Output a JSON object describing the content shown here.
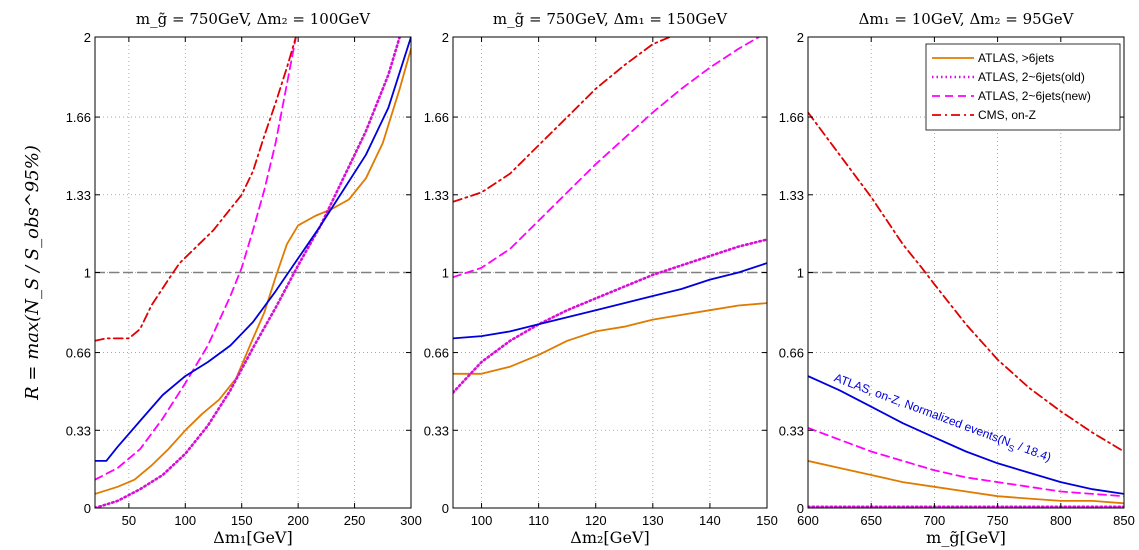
{
  "chart_data": [
    {
      "type": "line",
      "title": "m_g̃ = 750GeV, Δm₂ = 100GeV",
      "xlabel": "Δm₁[GeV]",
      "ylabel": "R = max(N_S / S_obs^95%)",
      "xlim": [
        20,
        300
      ],
      "ylim": [
        0,
        2
      ],
      "xticks": [
        50,
        100,
        150,
        200,
        250,
        300
      ],
      "yticks": [
        0,
        0.33,
        0.66,
        1,
        1.33,
        1.66,
        2
      ],
      "ytick_labels": [
        "0",
        "0.33",
        "0.66",
        "1",
        "1.33",
        "1.66",
        "2"
      ],
      "grid": true,
      "reference_line": 1,
      "series": [
        {
          "name": "ATLAS, >6jets",
          "color": "#E07B00",
          "style": "solid",
          "x": [
            20,
            40,
            55,
            70,
            85,
            100,
            115,
            130,
            145,
            160,
            170,
            180,
            190,
            200,
            215,
            230,
            245,
            260,
            275,
            290,
            300
          ],
          "y": [
            0.06,
            0.09,
            0.12,
            0.18,
            0.25,
            0.33,
            0.4,
            0.46,
            0.55,
            0.72,
            0.83,
            0.98,
            1.12,
            1.2,
            1.24,
            1.27,
            1.31,
            1.4,
            1.55,
            1.78,
            1.95
          ]
        },
        {
          "name": "ATLAS, 2~6jets(old)",
          "color": "#D60FD6",
          "style": "dotted",
          "x": [
            20,
            40,
            60,
            80,
            100,
            120,
            140,
            160,
            180,
            200,
            220,
            240,
            260,
            280,
            290
          ],
          "y": [
            0.0,
            0.03,
            0.08,
            0.14,
            0.23,
            0.35,
            0.5,
            0.68,
            0.85,
            1.03,
            1.2,
            1.4,
            1.6,
            1.84,
            2.0
          ]
        },
        {
          "name": "ATLAS, 2~6jets(new)",
          "color": "#FF00FF",
          "style": "dashed",
          "x": [
            20,
            40,
            60,
            80,
            100,
            120,
            140,
            150,
            160,
            170,
            180,
            190,
            198
          ],
          "y": [
            0.12,
            0.17,
            0.25,
            0.38,
            0.53,
            0.69,
            0.9,
            1.02,
            1.18,
            1.35,
            1.55,
            1.8,
            2.0
          ]
        },
        {
          "name": "CMS, on-Z",
          "color": "#E00000",
          "style": "dashdot",
          "x": [
            20,
            30,
            50,
            60,
            70,
            85,
            95,
            110,
            125,
            140,
            150,
            160,
            170,
            180,
            190,
            198
          ],
          "y": [
            0.71,
            0.72,
            0.72,
            0.76,
            0.86,
            0.97,
            1.04,
            1.11,
            1.18,
            1.27,
            1.33,
            1.43,
            1.58,
            1.72,
            1.87,
            2.0
          ]
        },
        {
          "name": "ATLAS, on-Z, Normalized events(N_S / 18.4)",
          "color": "#0000DD",
          "style": "solid",
          "x": [
            20,
            30,
            40,
            60,
            80,
            100,
            120,
            140,
            160,
            180,
            200,
            220,
            240,
            260,
            280,
            290,
            300
          ],
          "y": [
            0.2,
            0.2,
            0.26,
            0.37,
            0.48,
            0.56,
            0.62,
            0.69,
            0.79,
            0.92,
            1.06,
            1.2,
            1.35,
            1.5,
            1.7,
            1.85,
            2.0
          ]
        }
      ]
    },
    {
      "type": "line",
      "title": "m_g̃ = 750GeV, Δm₁ = 150GeV",
      "xlabel": "Δm₂[GeV]",
      "xlim": [
        95,
        150
      ],
      "ylim": [
        0,
        2
      ],
      "xticks": [
        100,
        110,
        120,
        130,
        140,
        150
      ],
      "yticks": [
        0,
        0.33,
        0.66,
        1,
        1.33,
        1.66,
        2
      ],
      "ytick_labels": [
        "0",
        "0.33",
        "0.66",
        "1",
        "1.33",
        "1.66",
        "2"
      ],
      "grid": true,
      "reference_line": 1,
      "series": [
        {
          "name": "ATLAS, >6jets",
          "color": "#E07B00",
          "style": "solid",
          "x": [
            95,
            100,
            105,
            110,
            115,
            120,
            125,
            130,
            135,
            140,
            145,
            150
          ],
          "y": [
            0.57,
            0.57,
            0.6,
            0.65,
            0.71,
            0.75,
            0.77,
            0.8,
            0.82,
            0.84,
            0.86,
            0.87
          ]
        },
        {
          "name": "ATLAS, 2~6jets(old)",
          "color": "#D60FD6",
          "style": "dotted",
          "x": [
            95,
            100,
            105,
            110,
            115,
            120,
            125,
            130,
            135,
            140,
            145,
            150
          ],
          "y": [
            0.49,
            0.62,
            0.71,
            0.78,
            0.84,
            0.89,
            0.94,
            0.99,
            1.03,
            1.07,
            1.11,
            1.14
          ]
        },
        {
          "name": "ATLAS, 2~6jets(new)",
          "color": "#FF00FF",
          "style": "dashed",
          "x": [
            95,
            100,
            105,
            110,
            115,
            120,
            125,
            130,
            135,
            140,
            145,
            150
          ],
          "y": [
            0.98,
            1.02,
            1.1,
            1.22,
            1.34,
            1.46,
            1.57,
            1.68,
            1.78,
            1.87,
            1.95,
            2.02
          ]
        },
        {
          "name": "CMS, on-Z",
          "color": "#E00000",
          "style": "dashdot",
          "x": [
            95,
            100,
            105,
            110,
            115,
            120,
            125,
            130,
            133
          ],
          "y": [
            1.3,
            1.34,
            1.42,
            1.54,
            1.66,
            1.78,
            1.88,
            1.97,
            2.0
          ]
        },
        {
          "name": "ATLAS, on-Z, Normalized events(N_S / 18.4)",
          "color": "#0000DD",
          "style": "solid",
          "x": [
            95,
            100,
            105,
            110,
            115,
            120,
            125,
            130,
            135,
            140,
            145,
            150
          ],
          "y": [
            0.72,
            0.73,
            0.75,
            0.78,
            0.81,
            0.84,
            0.87,
            0.9,
            0.93,
            0.97,
            1.0,
            1.04
          ]
        }
      ]
    },
    {
      "type": "line",
      "title": "Δm₁ = 10GeV, Δm₂ = 95GeV",
      "xlabel": "m_g̃[GeV]",
      "xlim": [
        600,
        850
      ],
      "ylim": [
        0,
        2
      ],
      "xticks": [
        600,
        650,
        700,
        750,
        800,
        850
      ],
      "yticks": [
        0,
        0.33,
        0.66,
        1,
        1.33,
        1.66,
        2
      ],
      "ytick_labels": [
        "0",
        "0.33",
        "0.66",
        "1",
        "1.33",
        "1.66",
        "2"
      ],
      "grid": true,
      "reference_line": 1,
      "legend_position": "top-right",
      "annotation": "ATLAS, on-Z, Normalized events(N",
      "annotation_sub": "S",
      "annotation_tail": " / 18.4)",
      "series": [
        {
          "name": "ATLAS, >6jets",
          "color": "#E07B00",
          "style": "solid",
          "x": [
            600,
            625,
            650,
            675,
            700,
            725,
            750,
            775,
            800,
            825,
            850
          ],
          "y": [
            0.2,
            0.17,
            0.14,
            0.11,
            0.09,
            0.07,
            0.05,
            0.04,
            0.03,
            0.03,
            0.02
          ]
        },
        {
          "name": "ATLAS, 2~6jets(old)",
          "color": "#D60FD6",
          "style": "dotted",
          "x": [
            600,
            850
          ],
          "y": [
            0.005,
            0.005
          ]
        },
        {
          "name": "ATLAS, 2~6jets(new)",
          "color": "#FF00FF",
          "style": "dashed",
          "x": [
            600,
            625,
            650,
            675,
            700,
            725,
            750,
            775,
            800,
            825,
            850
          ],
          "y": [
            0.34,
            0.29,
            0.24,
            0.2,
            0.16,
            0.13,
            0.11,
            0.09,
            0.07,
            0.06,
            0.05
          ]
        },
        {
          "name": "CMS, on-Z",
          "color": "#E00000",
          "style": "dashdot",
          "x": [
            600,
            625,
            650,
            675,
            690,
            700,
            725,
            750,
            775,
            800,
            825,
            850
          ],
          "y": [
            1.68,
            1.5,
            1.32,
            1.12,
            1.02,
            0.95,
            0.78,
            0.63,
            0.51,
            0.41,
            0.32,
            0.24
          ]
        },
        {
          "name": "ATLAS, on-Z, Normalized events(N_S / 18.4)",
          "color": "#0000DD",
          "style": "solid",
          "x": [
            600,
            625,
            650,
            675,
            700,
            725,
            750,
            775,
            800,
            825,
            850
          ],
          "y": [
            0.56,
            0.5,
            0.43,
            0.36,
            0.3,
            0.24,
            0.19,
            0.15,
            0.11,
            0.08,
            0.06
          ]
        }
      ]
    }
  ],
  "legend": [
    {
      "label": "ATLAS, >6jets",
      "color": "#E07B00",
      "style": "solid"
    },
    {
      "label": "ATLAS, 2~6jets(old)",
      "color": "#D60FD6",
      "style": "dotted"
    },
    {
      "label": "ATLAS, 2~6jets(new)",
      "color": "#FF00FF",
      "style": "dashed"
    },
    {
      "label": "CMS, on-Z",
      "color": "#E00000",
      "style": "dashdot"
    }
  ]
}
